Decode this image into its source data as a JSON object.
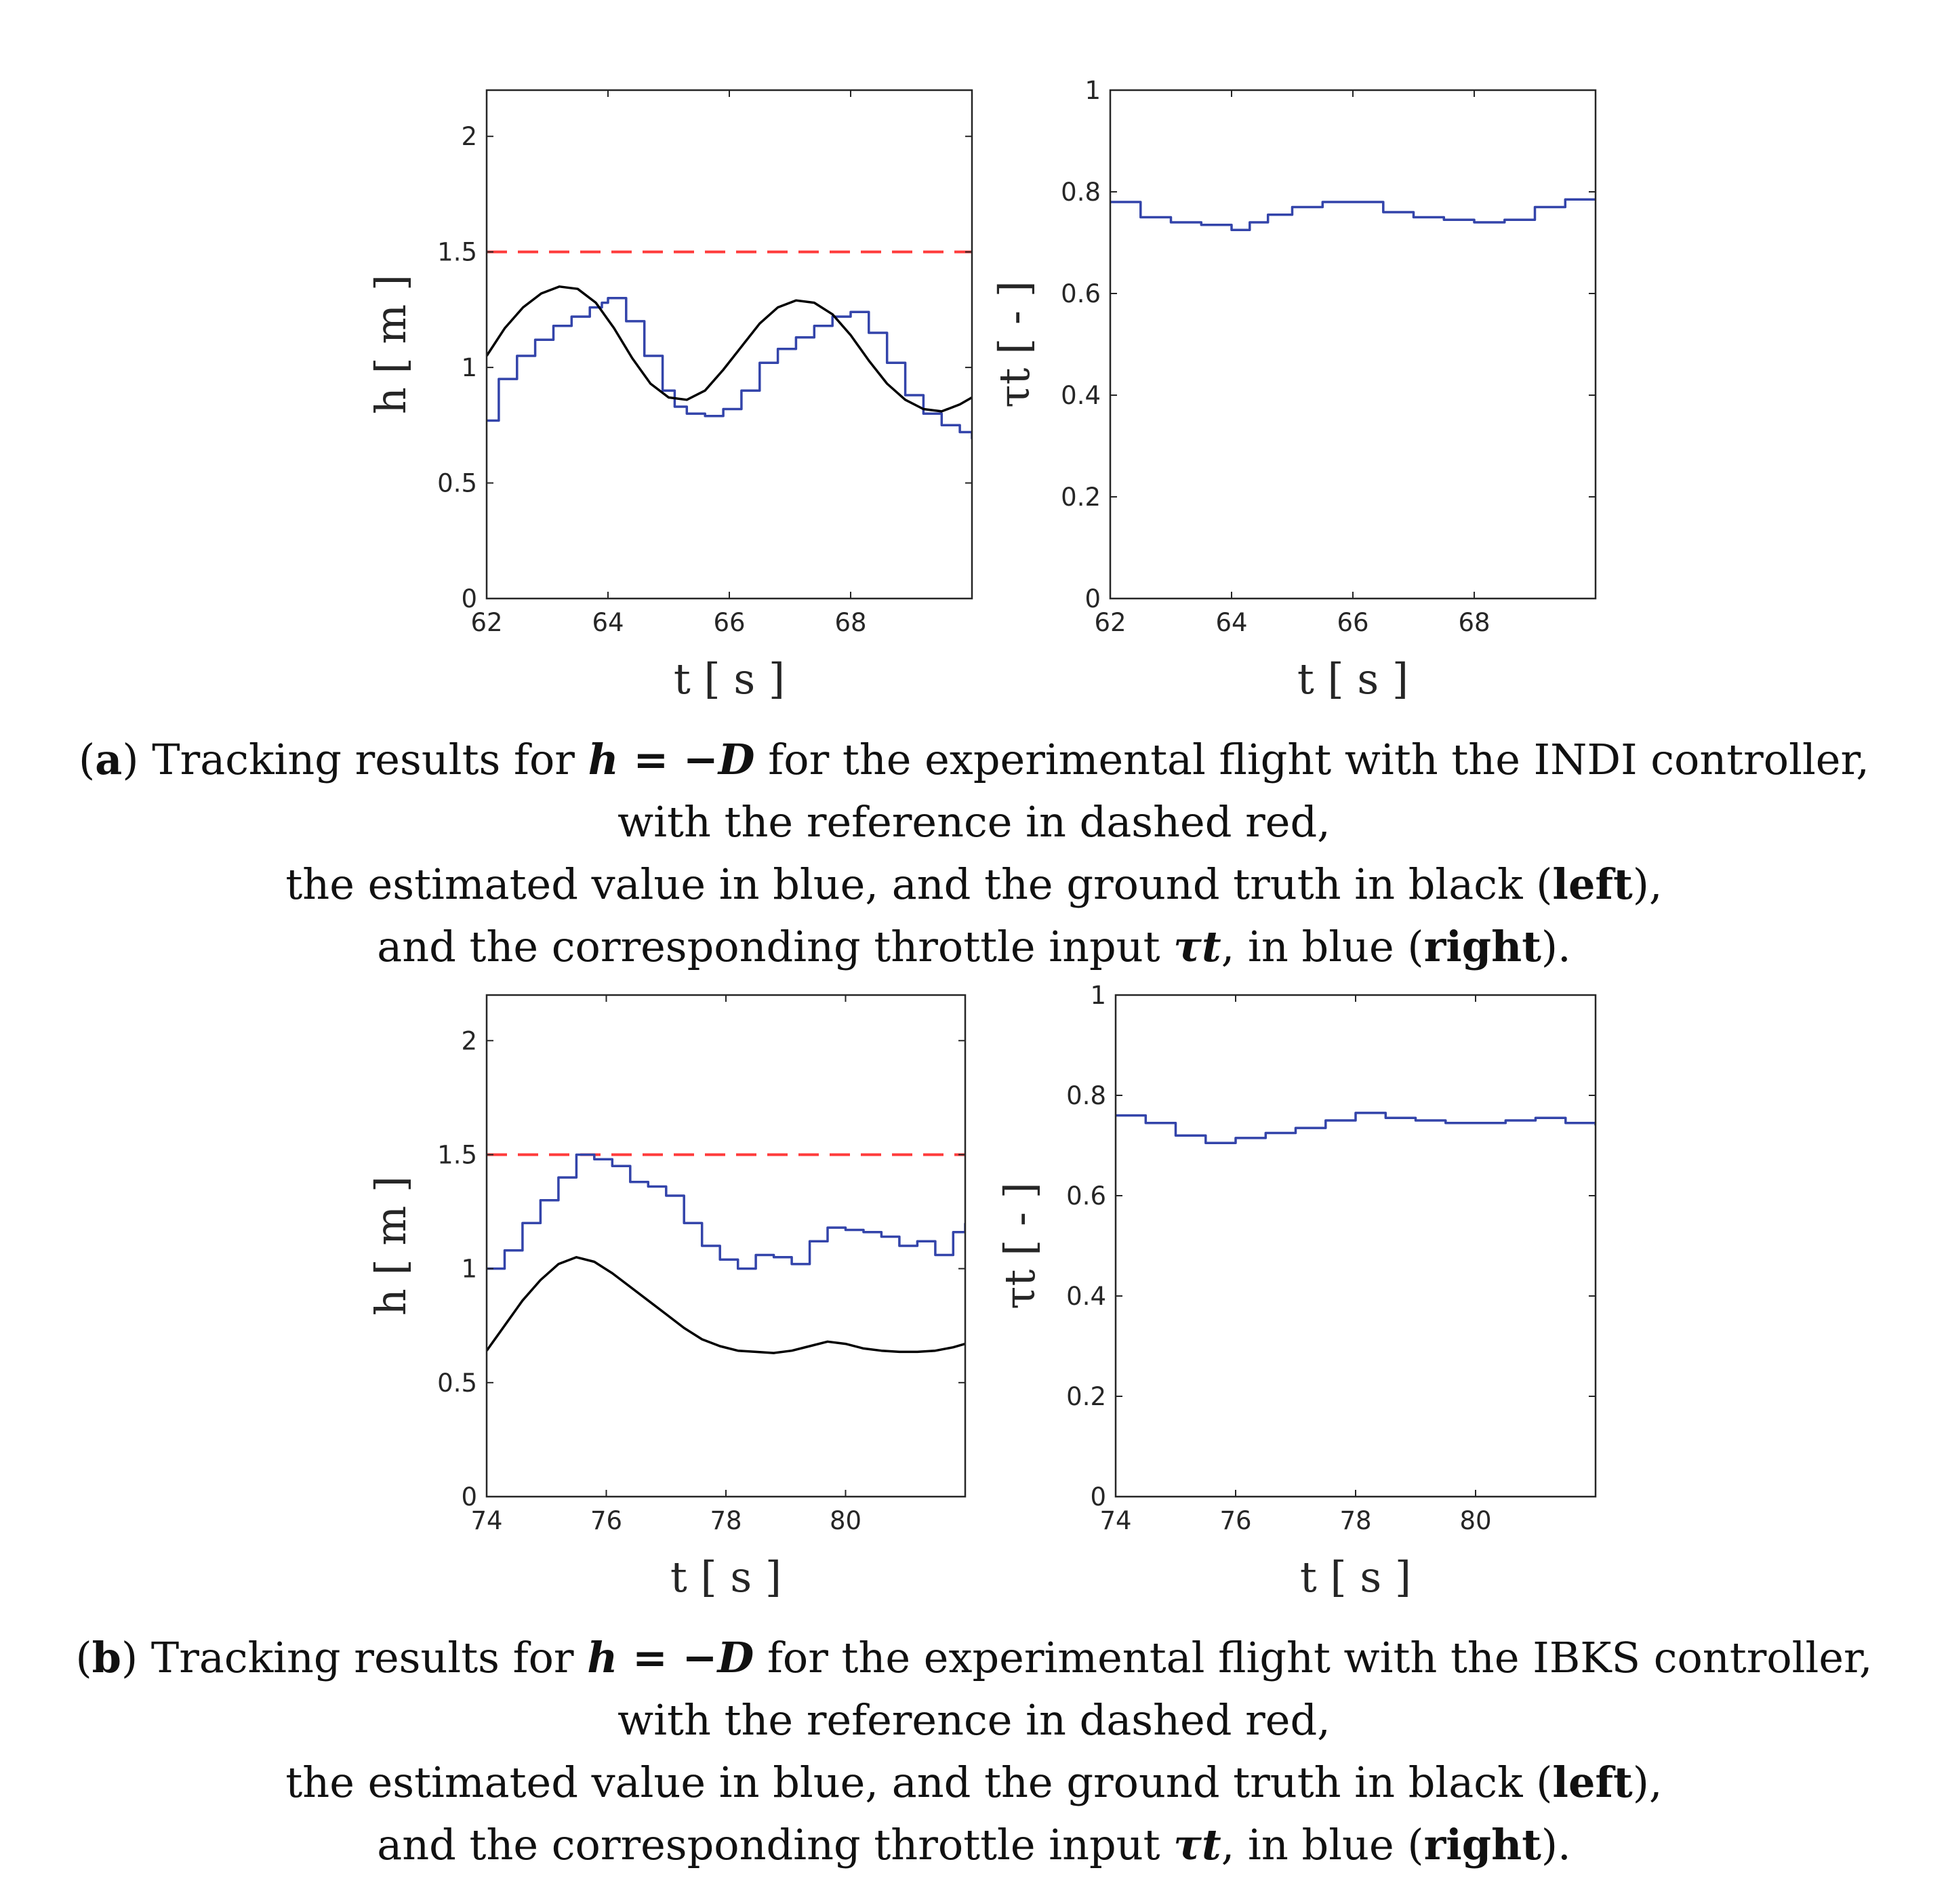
{
  "chart_data": [
    {
      "type": "line",
      "panel": "a-left",
      "xlabel": "t [ s ]",
      "ylabel": "h [ m ]",
      "xlim": [
        62,
        70
      ],
      "ylim": [
        0,
        2.2
      ],
      "xticks": [
        62,
        64,
        66,
        68
      ],
      "yticks": [
        0,
        0.5,
        1,
        1.5,
        2
      ],
      "grid": false,
      "series": [
        {
          "role": "reference",
          "color": "#ff3b3b",
          "dashed": true,
          "x": [
            62,
            70
          ],
          "y": [
            1.5,
            1.5
          ]
        },
        {
          "role": "estimated",
          "color": "#3344aa",
          "stepped": true,
          "x": [
            62,
            62.2,
            62.5,
            62.8,
            63.1,
            63.4,
            63.7,
            63.9,
            64.0,
            64.3,
            64.6,
            64.9,
            65.1,
            65.3,
            65.6,
            65.9,
            66.2,
            66.5,
            66.8,
            67.1,
            67.4,
            67.7,
            68.0,
            68.3,
            68.6,
            68.9,
            69.2,
            69.5,
            69.8,
            70.0
          ],
          "y": [
            0.77,
            0.95,
            1.05,
            1.12,
            1.18,
            1.22,
            1.26,
            1.28,
            1.3,
            1.2,
            1.05,
            0.9,
            0.83,
            0.8,
            0.79,
            0.82,
            0.9,
            1.02,
            1.08,
            1.13,
            1.18,
            1.22,
            1.24,
            1.15,
            1.02,
            0.88,
            0.8,
            0.75,
            0.72,
            0.69
          ]
        },
        {
          "role": "ground-truth",
          "color": "#000000",
          "x": [
            62,
            62.3,
            62.6,
            62.9,
            63.2,
            63.5,
            63.8,
            64.1,
            64.4,
            64.7,
            65.0,
            65.3,
            65.6,
            65.9,
            66.2,
            66.5,
            66.8,
            67.1,
            67.4,
            67.7,
            68.0,
            68.3,
            68.6,
            68.9,
            69.2,
            69.5,
            69.8,
            70.0
          ],
          "y": [
            1.05,
            1.17,
            1.26,
            1.32,
            1.35,
            1.34,
            1.28,
            1.17,
            1.04,
            0.93,
            0.87,
            0.86,
            0.9,
            0.99,
            1.09,
            1.19,
            1.26,
            1.29,
            1.28,
            1.23,
            1.14,
            1.03,
            0.93,
            0.86,
            0.82,
            0.81,
            0.84,
            0.87
          ]
        }
      ]
    },
    {
      "type": "line",
      "panel": "a-right",
      "xlabel": "t [ s ]",
      "ylabel": "τt [ - ]",
      "xlim": [
        62,
        70
      ],
      "ylim": [
        0,
        1
      ],
      "xticks": [
        62,
        64,
        66,
        68
      ],
      "yticks": [
        0,
        0.2,
        0.4,
        0.6,
        0.8,
        1
      ],
      "grid": false,
      "series": [
        {
          "role": "throttle",
          "color": "#3344aa",
          "stepped": true,
          "x": [
            62,
            62.5,
            63.0,
            63.5,
            64.0,
            64.3,
            64.6,
            65.0,
            65.5,
            66.0,
            66.5,
            67.0,
            67.5,
            68.0,
            68.5,
            69.0,
            69.5,
            70.0
          ],
          "y": [
            0.78,
            0.75,
            0.74,
            0.735,
            0.725,
            0.74,
            0.755,
            0.77,
            0.78,
            0.78,
            0.76,
            0.75,
            0.745,
            0.74,
            0.745,
            0.77,
            0.785,
            0.785
          ]
        }
      ]
    },
    {
      "type": "line",
      "panel": "b-left",
      "xlabel": "t [ s ]",
      "ylabel": "h [ m ]",
      "xlim": [
        74,
        82
      ],
      "ylim": [
        0,
        2.2
      ],
      "xticks": [
        74,
        76,
        78,
        80
      ],
      "yticks": [
        0,
        0.5,
        1,
        1.5,
        2
      ],
      "grid": false,
      "series": [
        {
          "role": "reference",
          "color": "#ff3b3b",
          "dashed": true,
          "x": [
            74,
            82
          ],
          "y": [
            1.5,
            1.5
          ]
        },
        {
          "role": "estimated",
          "color": "#3344aa",
          "stepped": true,
          "x": [
            74,
            74.3,
            74.6,
            74.9,
            75.2,
            75.5,
            75.8,
            76.1,
            76.4,
            76.7,
            77.0,
            77.3,
            77.6,
            77.9,
            78.2,
            78.5,
            78.8,
            79.1,
            79.4,
            79.7,
            80.0,
            80.3,
            80.6,
            80.9,
            81.2,
            81.5,
            81.8,
            82.0
          ],
          "y": [
            1.0,
            1.08,
            1.2,
            1.3,
            1.4,
            1.5,
            1.48,
            1.45,
            1.38,
            1.36,
            1.32,
            1.2,
            1.1,
            1.04,
            1.0,
            1.06,
            1.05,
            1.02,
            1.12,
            1.18,
            1.17,
            1.16,
            1.14,
            1.1,
            1.12,
            1.06,
            1.16,
            1.2
          ]
        },
        {
          "role": "ground-truth",
          "color": "#000000",
          "x": [
            74,
            74.3,
            74.6,
            74.9,
            75.2,
            75.5,
            75.8,
            76.1,
            76.4,
            76.7,
            77.0,
            77.3,
            77.6,
            77.9,
            78.2,
            78.5,
            78.8,
            79.1,
            79.4,
            79.7,
            80.0,
            80.3,
            80.6,
            80.9,
            81.2,
            81.5,
            81.8,
            82.0
          ],
          "y": [
            0.64,
            0.75,
            0.86,
            0.95,
            1.02,
            1.05,
            1.03,
            0.98,
            0.92,
            0.86,
            0.8,
            0.74,
            0.69,
            0.66,
            0.64,
            0.635,
            0.63,
            0.64,
            0.66,
            0.68,
            0.67,
            0.65,
            0.64,
            0.635,
            0.635,
            0.64,
            0.655,
            0.67
          ]
        }
      ]
    },
    {
      "type": "line",
      "panel": "b-right",
      "xlabel": "t [ s ]",
      "ylabel": "τt [ - ]",
      "xlim": [
        74,
        82
      ],
      "ylim": [
        0,
        1
      ],
      "xticks": [
        74,
        76,
        78,
        80
      ],
      "yticks": [
        0,
        0.2,
        0.4,
        0.6,
        0.8,
        1
      ],
      "grid": false,
      "series": [
        {
          "role": "throttle",
          "color": "#3344aa",
          "stepped": true,
          "x": [
            74,
            74.5,
            75.0,
            75.5,
            76.0,
            76.5,
            77.0,
            77.5,
            78.0,
            78.5,
            79.0,
            79.5,
            80.0,
            80.5,
            81.0,
            81.5,
            82.0
          ],
          "y": [
            0.76,
            0.745,
            0.72,
            0.705,
            0.715,
            0.725,
            0.735,
            0.75,
            0.765,
            0.755,
            0.75,
            0.745,
            0.745,
            0.75,
            0.755,
            0.745,
            0.74
          ]
        }
      ]
    }
  ],
  "captions": {
    "a": {
      "label": "a",
      "prefix": "Tracking results for",
      "math": "h = −D",
      "rest": "for the experimental flight with the INDI controller,",
      "line2": "with the reference in dashed red,",
      "line3_before": "the estimated value in blue, and the ground truth in black (",
      "left_word": "left",
      "line3_after": "),",
      "line4_before": "and the corresponding throttle input",
      "tau": "τt",
      "line4_mid": ", in blue (",
      "right_word": "right",
      "line4_after": ")."
    },
    "b": {
      "label": "b",
      "prefix": "Tracking results for",
      "math": "h = −D",
      "rest": "for the experimental flight with the IBKS controller,",
      "line2": "with the reference in dashed red,",
      "line3_before": "the estimated value in blue, and the ground truth in black (",
      "left_word": "left",
      "line3_after": "),",
      "line4_before": "and the corresponding throttle input",
      "tau": "τt",
      "line4_mid": ", in blue (",
      "right_word": "right",
      "line4_after": ")."
    }
  }
}
